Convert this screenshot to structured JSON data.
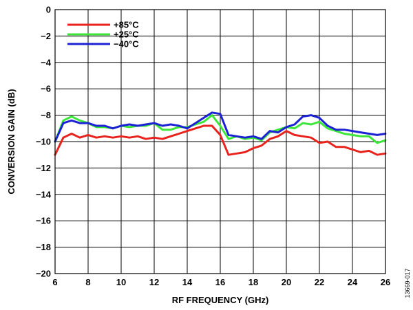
{
  "chart_data": {
    "type": "line",
    "xlabel": "RF FREQUENCY (GHz)",
    "ylabel": "CONVERSION GAIN (dB)",
    "xlim": [
      6,
      26
    ],
    "ylim": [
      -20,
      0
    ],
    "xticks": [
      "6",
      "8",
      "10",
      "12",
      "14",
      "16",
      "18",
      "20",
      "22",
      "24",
      "26"
    ],
    "yticks": [
      "0",
      "−2",
      "−4",
      "−6",
      "−8",
      "−10",
      "−12",
      "−14",
      "−16",
      "−18",
      "−20"
    ],
    "grid": true,
    "legend_position": "top-left",
    "figure_id": "13669-017",
    "x": [
      6.0,
      6.5,
      7.0,
      7.5,
      8.0,
      8.5,
      9.0,
      9.5,
      10.0,
      10.5,
      11.0,
      11.5,
      12.0,
      12.5,
      13.0,
      13.5,
      14.0,
      14.5,
      15.0,
      15.5,
      16.0,
      16.5,
      17.0,
      17.5,
      18.0,
      18.5,
      19.0,
      19.5,
      20.0,
      20.5,
      21.0,
      21.5,
      22.0,
      22.5,
      23.0,
      23.5,
      24.0,
      24.5,
      25.0,
      25.5,
      26.0
    ],
    "series": [
      {
        "name": "+85°C",
        "color": "#e8231d",
        "values": [
          -11.0,
          -9.7,
          -9.4,
          -9.7,
          -9.5,
          -9.7,
          -9.6,
          -9.7,
          -9.6,
          -9.7,
          -9.6,
          -9.8,
          -9.7,
          -9.8,
          -9.6,
          -9.4,
          -9.2,
          -9.0,
          -8.8,
          -8.8,
          -9.5,
          -11.0,
          -10.9,
          -10.8,
          -10.5,
          -10.3,
          -9.8,
          -9.6,
          -9.2,
          -9.5,
          -9.6,
          -9.7,
          -10.1,
          -10.0,
          -10.4,
          -10.4,
          -10.6,
          -10.8,
          -10.7,
          -11.0,
          -10.9
        ]
      },
      {
        "name": "+25°C",
        "color": "#3de63a",
        "values": [
          -10.0,
          -8.4,
          -8.1,
          -8.4,
          -8.6,
          -8.9,
          -8.9,
          -9.0,
          -8.8,
          -8.9,
          -8.8,
          -8.8,
          -8.6,
          -9.1,
          -9.1,
          -8.9,
          -8.9,
          -8.7,
          -8.5,
          -8.0,
          -8.8,
          -9.8,
          -9.6,
          -9.8,
          -9.7,
          -9.9,
          -9.3,
          -9.1,
          -8.9,
          -9.0,
          -8.6,
          -8.7,
          -8.5,
          -9.0,
          -9.2,
          -9.4,
          -9.5,
          -9.6,
          -9.6,
          -10.1,
          -9.9
        ]
      },
      {
        "name": "−40°C",
        "color": "#1c22d4",
        "values": [
          -10.0,
          -8.6,
          -8.4,
          -8.6,
          -8.6,
          -8.8,
          -8.8,
          -9.0,
          -8.8,
          -8.7,
          -8.8,
          -8.7,
          -8.6,
          -8.8,
          -8.7,
          -8.8,
          -9.0,
          -8.6,
          -8.2,
          -7.8,
          -7.9,
          -9.5,
          -9.6,
          -9.7,
          -9.6,
          -9.8,
          -9.2,
          -9.3,
          -8.9,
          -8.7,
          -8.1,
          -8.0,
          -8.2,
          -8.8,
          -9.1,
          -9.1,
          -9.2,
          -9.3,
          -9.4,
          -9.5,
          -9.4
        ]
      }
    ]
  }
}
